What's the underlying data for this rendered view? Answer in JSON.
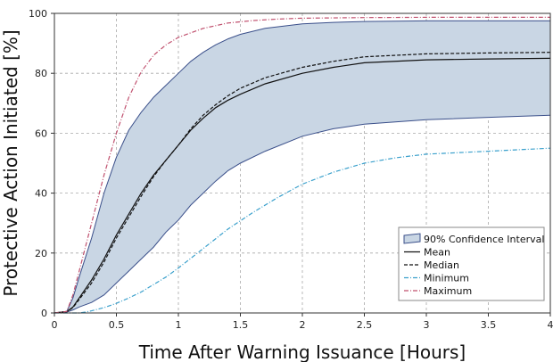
{
  "chart_data": {
    "type": "line",
    "xlabel": "Time After Warning Issuance [Hours]",
    "ylabel": "Protective Action Initiated [%]",
    "xlim": [
      0,
      4
    ],
    "ylim": [
      0,
      100
    ],
    "xticks": [
      0,
      0.5,
      1,
      1.5,
      2,
      2.5,
      3,
      3.5,
      4
    ],
    "xtick_labels": [
      "0",
      "0.5",
      "1",
      "1.5",
      "2",
      "2.5",
      "3",
      "3.5",
      "4"
    ],
    "yticks": [
      0,
      20,
      40,
      60,
      80,
      100
    ],
    "ytick_labels": [
      "0",
      "20",
      "40",
      "60",
      "80",
      "100"
    ],
    "grid": true,
    "legend_position": "bottom-right",
    "band": {
      "name": "90% Confidence Interval",
      "x": [
        0,
        0.1,
        0.15,
        0.2,
        0.3,
        0.4,
        0.5,
        0.6,
        0.7,
        0.8,
        0.9,
        1.0,
        1.1,
        1.2,
        1.3,
        1.4,
        1.5,
        1.7,
        2.0,
        2.25,
        2.5,
        3.0,
        3.5,
        4.0
      ],
      "upper": [
        0,
        0.5,
        5,
        12,
        25,
        40,
        52,
        61,
        67,
        72,
        76,
        80,
        84,
        87,
        89.5,
        91.5,
        93,
        95,
        96.5,
        97,
        97.3,
        97.5,
        97.5,
        97.5
      ],
      "lower": [
        0,
        0.3,
        1,
        2,
        3.5,
        6,
        10,
        14,
        18,
        22,
        27,
        31,
        36,
        40,
        44,
        47.5,
        50,
        54,
        59,
        61.5,
        63,
        64.5,
        65.3,
        66
      ]
    },
    "series": [
      {
        "name": "Mean",
        "color": "#111111",
        "dash": "solid",
        "x": [
          0,
          0.1,
          0.15,
          0.2,
          0.3,
          0.4,
          0.5,
          0.6,
          0.7,
          0.8,
          0.9,
          1.0,
          1.1,
          1.2,
          1.3,
          1.4,
          1.5,
          1.7,
          2.0,
          2.25,
          2.5,
          3.0,
          3.5,
          4.0
        ],
        "y": [
          0,
          0.5,
          2,
          5,
          11,
          18,
          26,
          33,
          40,
          46,
          51,
          56,
          61,
          65,
          68.5,
          71,
          73,
          76.5,
          80,
          82,
          83.5,
          84.5,
          84.8,
          85
        ]
      },
      {
        "name": "Median",
        "color": "#111111",
        "dash": "dashed",
        "x": [
          0,
          0.1,
          0.15,
          0.2,
          0.3,
          0.4,
          0.5,
          0.6,
          0.7,
          0.8,
          0.9,
          1.0,
          1.1,
          1.2,
          1.3,
          1.4,
          1.5,
          1.7,
          2.0,
          2.25,
          2.5,
          3.0,
          3.5,
          4.0
        ],
        "y": [
          0,
          0.4,
          1.8,
          4.5,
          10,
          17,
          25,
          32,
          39,
          45.5,
          51,
          56,
          61.5,
          66,
          69.5,
          72.5,
          75,
          78.5,
          82,
          84,
          85.5,
          86.5,
          86.8,
          87
        ]
      },
      {
        "name": "Minimum",
        "color": "#3aa0cc",
        "dash": "dashdot",
        "x": [
          0,
          0.2,
          0.25,
          0.3,
          0.4,
          0.5,
          0.6,
          0.7,
          0.8,
          0.9,
          1.0,
          1.2,
          1.4,
          1.6,
          1.8,
          2.0,
          2.25,
          2.5,
          2.75,
          3.0,
          3.5,
          4.0
        ],
        "y": [
          0,
          0,
          0.3,
          0.7,
          1.8,
          3.2,
          5,
          7,
          9.5,
          12,
          15,
          21.5,
          28,
          33.5,
          38.5,
          43,
          47,
          50,
          51.8,
          53,
          54,
          55
        ]
      },
      {
        "name": "Maximum",
        "color": "#c0506e",
        "dash": "dashdot",
        "x": [
          0,
          0.1,
          0.15,
          0.2,
          0.3,
          0.4,
          0.5,
          0.6,
          0.7,
          0.8,
          0.9,
          1.0,
          1.2,
          1.4,
          1.6,
          1.8,
          2.0,
          2.5,
          3.0,
          4.0
        ],
        "y": [
          0,
          0.5,
          6,
          14,
          30,
          46,
          60,
          72,
          80.5,
          86,
          89.5,
          92,
          95,
          96.8,
          97.6,
          98.1,
          98.4,
          98.6,
          98.7,
          98.7
        ]
      }
    ],
    "band_fill": "#c9d6e4",
    "band_edge": "#3a4f8a"
  }
}
